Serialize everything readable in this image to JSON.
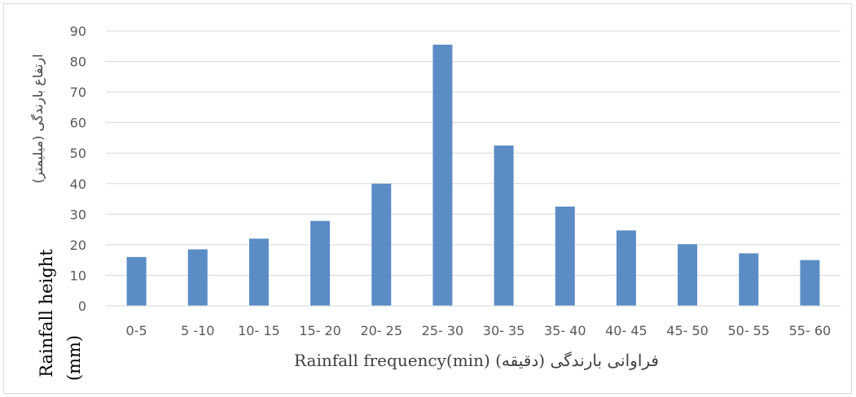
{
  "chart_data": {
    "type": "bar",
    "categories": [
      "0-5",
      "5 -10",
      "10- 15",
      "15- 20",
      "20- 25",
      "25- 30",
      "30- 35",
      "35- 40",
      "40- 45",
      "45- 50",
      "50- 55",
      "55- 60"
    ],
    "values": [
      16,
      18.5,
      22,
      27.8,
      40,
      85.5,
      52.5,
      32.5,
      24.7,
      20.2,
      17.2,
      15
    ],
    "xlabel": "Rainfall frequency(min) (دقیقه) فراوانی بارندگی",
    "ylabel": "Rainfall height (mm)",
    "ylabel_line1": "Rainfall height",
    "ylabel_line2": "(mm)",
    "ylabel_fa": "ارتفاع بارندگی (میلیمتر)",
    "ylim": [
      0,
      90
    ],
    "yticks": [
      "0",
      "10",
      "20",
      "30",
      "40",
      "50",
      "60",
      "70",
      "80",
      "90"
    ],
    "grid": true,
    "bar_color": "#5b8cc6"
  }
}
